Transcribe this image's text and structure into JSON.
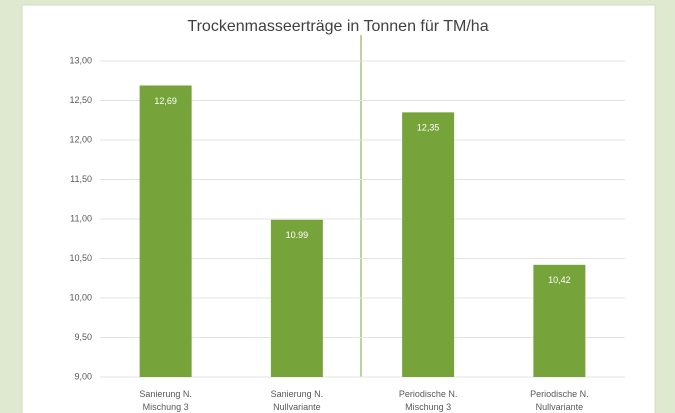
{
  "chart_data": {
    "type": "bar",
    "title": "Trockenmasseerträge in Tonnen für TM/ha",
    "categories": [
      "Sanierung N. Mischung 3",
      "Sanierung N. Nullvariante",
      "Periodische N. Mischung 3",
      "Periodische N. Nullvariante"
    ],
    "values": [
      12.69,
      10.99,
      12.35,
      10.42
    ],
    "value_labels": [
      "12,69",
      "10.99",
      "12,35",
      "10,42"
    ],
    "color": "#77a43a",
    "ylim": [
      9,
      13
    ],
    "yticks": [
      {
        "value": 9,
        "label": "9,00"
      },
      {
        "value": 9.5,
        "label": "9,50"
      },
      {
        "value": 10,
        "label": "10,00"
      },
      {
        "value": 10.5,
        "label": "10,50"
      },
      {
        "value": 11,
        "label": "11,00"
      },
      {
        "value": 11.5,
        "label": "11,50"
      },
      {
        "value": 12,
        "label": "12,00"
      },
      {
        "value": 12.5,
        "label": "12,50"
      },
      {
        "value": 13,
        "label": "13,00"
      }
    ],
    "grid": true
  }
}
